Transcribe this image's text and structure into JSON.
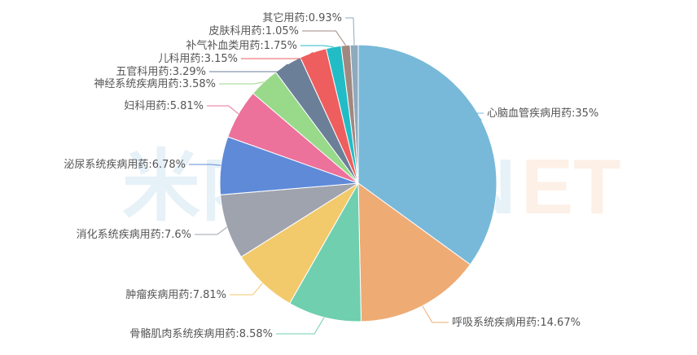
{
  "watermark": "米内网 MENET",
  "chart_data": {
    "type": "pie",
    "title": "",
    "start": "top",
    "direction": "clockwise",
    "slices": [
      {
        "label": "心脑血管疾病用药",
        "value": 35,
        "text": "心脑血管疾病用药:35%",
        "color": "#78b9d9"
      },
      {
        "label": "呼吸系统疾病用药",
        "value": 14.67,
        "text": "呼吸系统疾病用药:14.67%",
        "color": "#eeab74"
      },
      {
        "label": "骨骼肌肉系统疾病用药",
        "value": 8.58,
        "text": "骨骼肌肉系统疾病用药:8.58%",
        "color": "#6fcfae"
      },
      {
        "label": "肿瘤疾病用药",
        "value": 7.81,
        "text": "肿瘤疾病用药:7.81%",
        "color": "#f2ca6c"
      },
      {
        "label": "消化系统疾病用药",
        "value": 7.6,
        "text": "消化系统疾病用药:7.6%",
        "color": "#9ea3ae"
      },
      {
        "label": "泌尿系统疾病用药",
        "value": 6.78,
        "text": "泌尿系统疾病用药:6.78%",
        "color": "#5f8ad8"
      },
      {
        "label": "妇科用药",
        "value": 5.81,
        "text": "妇科用药:5.81%",
        "color": "#ec719b"
      },
      {
        "label": "神经系统疾病用药",
        "value": 3.58,
        "text": "神经系统疾病用药:3.58%",
        "color": "#98d98a"
      },
      {
        "label": "五官科用药",
        "value": 3.29,
        "text": "五官科用药:3.29%",
        "color": "#6b7f98"
      },
      {
        "label": "儿科用药",
        "value": 3.15,
        "text": "儿科用药:3.15%",
        "color": "#ee5e5e"
      },
      {
        "label": "补气补血类用药",
        "value": 1.75,
        "text": "补气补血类用药:1.75%",
        "color": "#22bcc6"
      },
      {
        "label": "皮肤科用药",
        "value": 1.05,
        "text": "皮肤科用药:1.05%",
        "color": "#a08880"
      },
      {
        "label": "其它用药",
        "value": 0.93,
        "text": "其它用药:0.93%",
        "color": "#8fa9bd"
      }
    ]
  }
}
